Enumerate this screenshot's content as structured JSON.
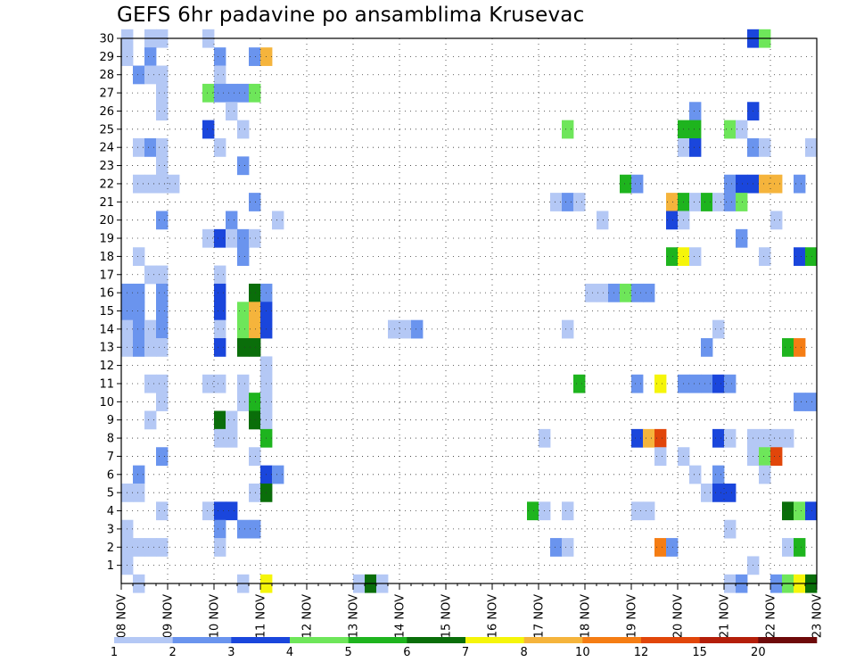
{
  "chart_data": {
    "type": "heatmap",
    "title": "GEFS 6hr padavine po ansamblima Krusevac",
    "xlabel": "",
    "ylabel": "",
    "x_tick_labels": [
      "08 NOV",
      "09 NOV",
      "10 NOV",
      "11 NOV",
      "12 NOV",
      "13 NOV",
      "14 NOV",
      "15 NOV",
      "16 NOV",
      "17 NOV",
      "18 NOV",
      "19 NOV",
      "20 NOV",
      "21 NOV",
      "22 NOV",
      "23 NOV"
    ],
    "y_tick_labels": [
      "1",
      "2",
      "3",
      "4",
      "5",
      "6",
      "7",
      "8",
      "9",
      "10",
      "11",
      "12",
      "13",
      "14",
      "15",
      "16",
      "17",
      "18",
      "19",
      "20",
      "21",
      "22",
      "23",
      "24",
      "25",
      "26",
      "27",
      "28",
      "29",
      "30"
    ],
    "xlim_6hr_steps": [
      0,
      60
    ],
    "ylim_members": [
      0,
      30
    ],
    "grid": true,
    "legend_placement": "bottom",
    "legend_labels": [
      "1",
      "2",
      "3",
      "4",
      "5",
      "6",
      "7",
      "8",
      "10",
      "12",
      "15",
      "20"
    ],
    "legend_colors": [
      "#b4c8f5",
      "#6a94ee",
      "#1a46dc",
      "#6ee65a",
      "#1eb41e",
      "#0a6e0a",
      "#f5f50a",
      "#f5b43c",
      "#f57d14",
      "#e1460a",
      "#b41e0a",
      "#6e0a0a"
    ],
    "palette": [
      "#b4c8f5",
      "#6a94ee",
      "#1a46dc",
      "#6ee65a",
      "#1eb41e",
      "#0a6e0a",
      "#f5f50a",
      "#f5b43c",
      "#f57d14",
      "#e1460a",
      "#b41e0a"
    ],
    "cells_note": "each cell: [member (row 0..30), 6hr step (col 0..59), color class index into palette]",
    "cells": [
      [
        30,
        0,
        0
      ],
      [
        30,
        2,
        0
      ],
      [
        30,
        3,
        0
      ],
      [
        30,
        7,
        0
      ],
      [
        30,
        54,
        2
      ],
      [
        30,
        55,
        3
      ],
      [
        29,
        0,
        0
      ],
      [
        29,
        2,
        1
      ],
      [
        29,
        8,
        1
      ],
      [
        29,
        11,
        1
      ],
      [
        29,
        12,
        7
      ],
      [
        28,
        1,
        1
      ],
      [
        28,
        2,
        0
      ],
      [
        28,
        3,
        0
      ],
      [
        28,
        8,
        0
      ],
      [
        27,
        3,
        0
      ],
      [
        27,
        7,
        3
      ],
      [
        27,
        8,
        1
      ],
      [
        27,
        9,
        1
      ],
      [
        27,
        10,
        1
      ],
      [
        27,
        11,
        3
      ],
      [
        26,
        3,
        0
      ],
      [
        26,
        9,
        0
      ],
      [
        26,
        49,
        1
      ],
      [
        26,
        54,
        2
      ],
      [
        25,
        7,
        2
      ],
      [
        25,
        10,
        0
      ],
      [
        25,
        38,
        3
      ],
      [
        25,
        48,
        4
      ],
      [
        25,
        49,
        4
      ],
      [
        25,
        52,
        3
      ],
      [
        25,
        53,
        0
      ],
      [
        24,
        1,
        0
      ],
      [
        24,
        2,
        1
      ],
      [
        24,
        3,
        0
      ],
      [
        24,
        8,
        0
      ],
      [
        24,
        48,
        0
      ],
      [
        24,
        49,
        2
      ],
      [
        24,
        54,
        1
      ],
      [
        24,
        55,
        0
      ],
      [
        24,
        59,
        0
      ],
      [
        23,
        3,
        0
      ],
      [
        23,
        10,
        1
      ],
      [
        22,
        1,
        0
      ],
      [
        22,
        2,
        0
      ],
      [
        22,
        3,
        0
      ],
      [
        22,
        4,
        0
      ],
      [
        22,
        43,
        4
      ],
      [
        22,
        44,
        1
      ],
      [
        22,
        52,
        1
      ],
      [
        22,
        53,
        2
      ],
      [
        22,
        54,
        2
      ],
      [
        22,
        55,
        7
      ],
      [
        22,
        56,
        7
      ],
      [
        22,
        58,
        1
      ],
      [
        21,
        11,
        1
      ],
      [
        21,
        37,
        0
      ],
      [
        21,
        38,
        1
      ],
      [
        21,
        39,
        0
      ],
      [
        21,
        47,
        7
      ],
      [
        21,
        48,
        4
      ],
      [
        21,
        49,
        0
      ],
      [
        21,
        50,
        4
      ],
      [
        21,
        51,
        0
      ],
      [
        21,
        52,
        1
      ],
      [
        21,
        53,
        3
      ],
      [
        20,
        3,
        1
      ],
      [
        20,
        9,
        1
      ],
      [
        20,
        13,
        0
      ],
      [
        20,
        41,
        0
      ],
      [
        20,
        47,
        2
      ],
      [
        20,
        48,
        0
      ],
      [
        20,
        56,
        0
      ],
      [
        19,
        7,
        0
      ],
      [
        19,
        8,
        2
      ],
      [
        19,
        9,
        0
      ],
      [
        19,
        10,
        1
      ],
      [
        19,
        11,
        0
      ],
      [
        19,
        53,
        1
      ],
      [
        18,
        1,
        0
      ],
      [
        18,
        10,
        1
      ],
      [
        18,
        47,
        4
      ],
      [
        18,
        48,
        6
      ],
      [
        18,
        49,
        0
      ],
      [
        18,
        55,
        0
      ],
      [
        18,
        58,
        2
      ],
      [
        18,
        59,
        4
      ],
      [
        17,
        2,
        0
      ],
      [
        17,
        3,
        0
      ],
      [
        17,
        8,
        0
      ],
      [
        16,
        0,
        1
      ],
      [
        16,
        1,
        1
      ],
      [
        16,
        3,
        1
      ],
      [
        16,
        8,
        2
      ],
      [
        16,
        11,
        5
      ],
      [
        16,
        12,
        1
      ],
      [
        16,
        40,
        0
      ],
      [
        16,
        41,
        0
      ],
      [
        16,
        42,
        1
      ],
      [
        16,
        43,
        3
      ],
      [
        16,
        44,
        1
      ],
      [
        16,
        45,
        1
      ],
      [
        15,
        0,
        1
      ],
      [
        15,
        1,
        1
      ],
      [
        15,
        3,
        1
      ],
      [
        15,
        8,
        2
      ],
      [
        15,
        10,
        3
      ],
      [
        15,
        11,
        7
      ],
      [
        15,
        12,
        2
      ],
      [
        14,
        0,
        0
      ],
      [
        14,
        1,
        1
      ],
      [
        14,
        2,
        0
      ],
      [
        14,
        3,
        1
      ],
      [
        14,
        8,
        0
      ],
      [
        14,
        10,
        3
      ],
      [
        14,
        11,
        7
      ],
      [
        14,
        12,
        2
      ],
      [
        14,
        23,
        0
      ],
      [
        14,
        24,
        0
      ],
      [
        14,
        25,
        1
      ],
      [
        14,
        38,
        0
      ],
      [
        14,
        51,
        0
      ],
      [
        13,
        0,
        0
      ],
      [
        13,
        1,
        1
      ],
      [
        13,
        2,
        0
      ],
      [
        13,
        3,
        0
      ],
      [
        13,
        8,
        2
      ],
      [
        13,
        10,
        5
      ],
      [
        13,
        11,
        5
      ],
      [
        13,
        50,
        1
      ],
      [
        13,
        57,
        4
      ],
      [
        13,
        58,
        8
      ],
      [
        12,
        12,
        0
      ],
      [
        11,
        2,
        0
      ],
      [
        11,
        3,
        0
      ],
      [
        11,
        7,
        0
      ],
      [
        11,
        8,
        0
      ],
      [
        11,
        10,
        0
      ],
      [
        11,
        12,
        0
      ],
      [
        11,
        39,
        4
      ],
      [
        11,
        44,
        1
      ],
      [
        11,
        46,
        6
      ],
      [
        11,
        48,
        1
      ],
      [
        11,
        49,
        1
      ],
      [
        11,
        50,
        1
      ],
      [
        11,
        51,
        2
      ],
      [
        11,
        52,
        1
      ],
      [
        10,
        3,
        0
      ],
      [
        10,
        10,
        0
      ],
      [
        10,
        11,
        4
      ],
      [
        10,
        12,
        0
      ],
      [
        10,
        58,
        1
      ],
      [
        10,
        59,
        1
      ],
      [
        9,
        2,
        0
      ],
      [
        9,
        8,
        5
      ],
      [
        9,
        9,
        0
      ],
      [
        9,
        11,
        5
      ],
      [
        9,
        12,
        0
      ],
      [
        8,
        8,
        0
      ],
      [
        8,
        9,
        0
      ],
      [
        8,
        12,
        4
      ],
      [
        8,
        36,
        0
      ],
      [
        8,
        44,
        2
      ],
      [
        8,
        45,
        7
      ],
      [
        8,
        46,
        9
      ],
      [
        8,
        51,
        2
      ],
      [
        8,
        52,
        0
      ],
      [
        8,
        54,
        0
      ],
      [
        8,
        55,
        0
      ],
      [
        8,
        56,
        0
      ],
      [
        8,
        57,
        0
      ],
      [
        7,
        3,
        1
      ],
      [
        7,
        11,
        0
      ],
      [
        7,
        46,
        0
      ],
      [
        7,
        48,
        0
      ],
      [
        7,
        54,
        0
      ],
      [
        7,
        55,
        3
      ],
      [
        7,
        56,
        9
      ],
      [
        6,
        1,
        1
      ],
      [
        6,
        12,
        2
      ],
      [
        6,
        13,
        1
      ],
      [
        6,
        49,
        0
      ],
      [
        6,
        51,
        1
      ],
      [
        6,
        55,
        0
      ],
      [
        5,
        0,
        0
      ],
      [
        5,
        1,
        0
      ],
      [
        5,
        11,
        0
      ],
      [
        5,
        12,
        5
      ],
      [
        5,
        50,
        0
      ],
      [
        5,
        51,
        2
      ],
      [
        5,
        52,
        2
      ],
      [
        4,
        3,
        0
      ],
      [
        4,
        7,
        0
      ],
      [
        4,
        8,
        2
      ],
      [
        4,
        9,
        2
      ],
      [
        4,
        35,
        4
      ],
      [
        4,
        36,
        0
      ],
      [
        4,
        38,
        0
      ],
      [
        4,
        44,
        0
      ],
      [
        4,
        45,
        0
      ],
      [
        4,
        57,
        5
      ],
      [
        4,
        58,
        3
      ],
      [
        4,
        59,
        2
      ],
      [
        3,
        0,
        0
      ],
      [
        3,
        8,
        1
      ],
      [
        3,
        10,
        1
      ],
      [
        3,
        11,
        1
      ],
      [
        3,
        52,
        0
      ],
      [
        2,
        0,
        0
      ],
      [
        2,
        1,
        0
      ],
      [
        2,
        2,
        0
      ],
      [
        2,
        3,
        0
      ],
      [
        2,
        8,
        0
      ],
      [
        2,
        37,
        1
      ],
      [
        2,
        38,
        0
      ],
      [
        2,
        46,
        8
      ],
      [
        2,
        47,
        1
      ],
      [
        2,
        57,
        0
      ],
      [
        2,
        58,
        4
      ],
      [
        1,
        0,
        0
      ],
      [
        1,
        54,
        0
      ],
      [
        0,
        1,
        0
      ],
      [
        0,
        10,
        0
      ],
      [
        0,
        12,
        6
      ],
      [
        0,
        20,
        0
      ],
      [
        0,
        21,
        5
      ],
      [
        0,
        22,
        0
      ],
      [
        0,
        52,
        0
      ],
      [
        0,
        53,
        1
      ],
      [
        0,
        56,
        1
      ],
      [
        0,
        57,
        3
      ],
      [
        0,
        58,
        6
      ],
      [
        0,
        59,
        5
      ]
    ]
  }
}
